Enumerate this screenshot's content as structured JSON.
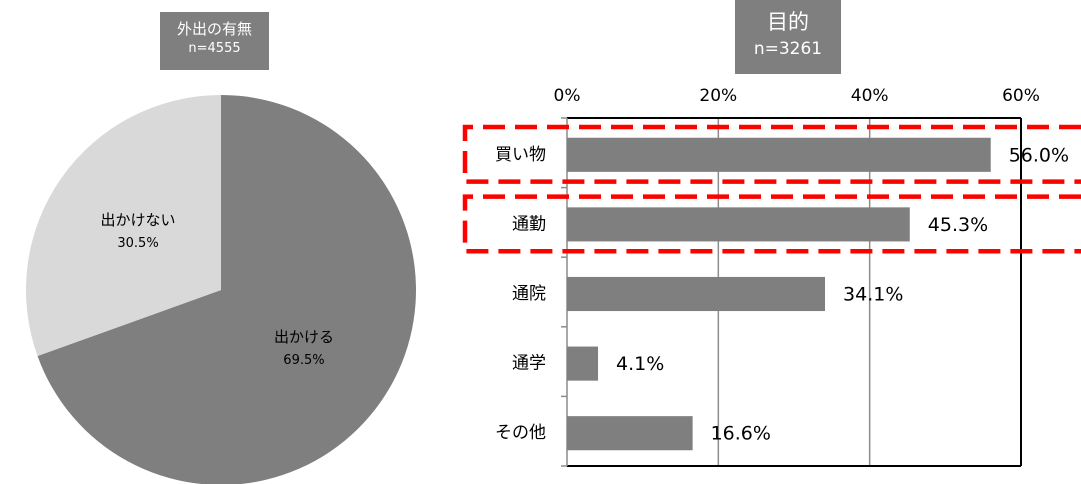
{
  "chart_data": [
    {
      "type": "pie",
      "title": "外出の有無",
      "subtitle": "n=4555",
      "slices": [
        {
          "label": "出かける",
          "value": 69.5,
          "value_label": "69.5%",
          "color": "#7f7f7f"
        },
        {
          "label": "出かけない",
          "value": 30.5,
          "value_label": "30.5%",
          "color": "#d9d9d9"
        }
      ]
    },
    {
      "type": "bar",
      "orientation": "horizontal",
      "title": "目的",
      "subtitle": "n=3261",
      "categories": [
        "買い物",
        "通勤",
        "通院",
        "通学",
        "その他"
      ],
      "values": [
        56.0,
        45.3,
        34.1,
        4.1,
        16.6
      ],
      "value_labels": [
        "56.0%",
        "45.3%",
        "34.1%",
        "4.1%",
        "16.6%"
      ],
      "xlim": [
        0,
        60
      ],
      "ticks": [
        0,
        20,
        40,
        60
      ],
      "tick_labels": [
        "0%",
        "20%",
        "40%",
        "60%"
      ],
      "grid": true,
      "bar_color": "#7f7f7f",
      "highlight_color": "#ff0000",
      "highlighted_categories": [
        "買い物",
        "通勤"
      ]
    }
  ]
}
